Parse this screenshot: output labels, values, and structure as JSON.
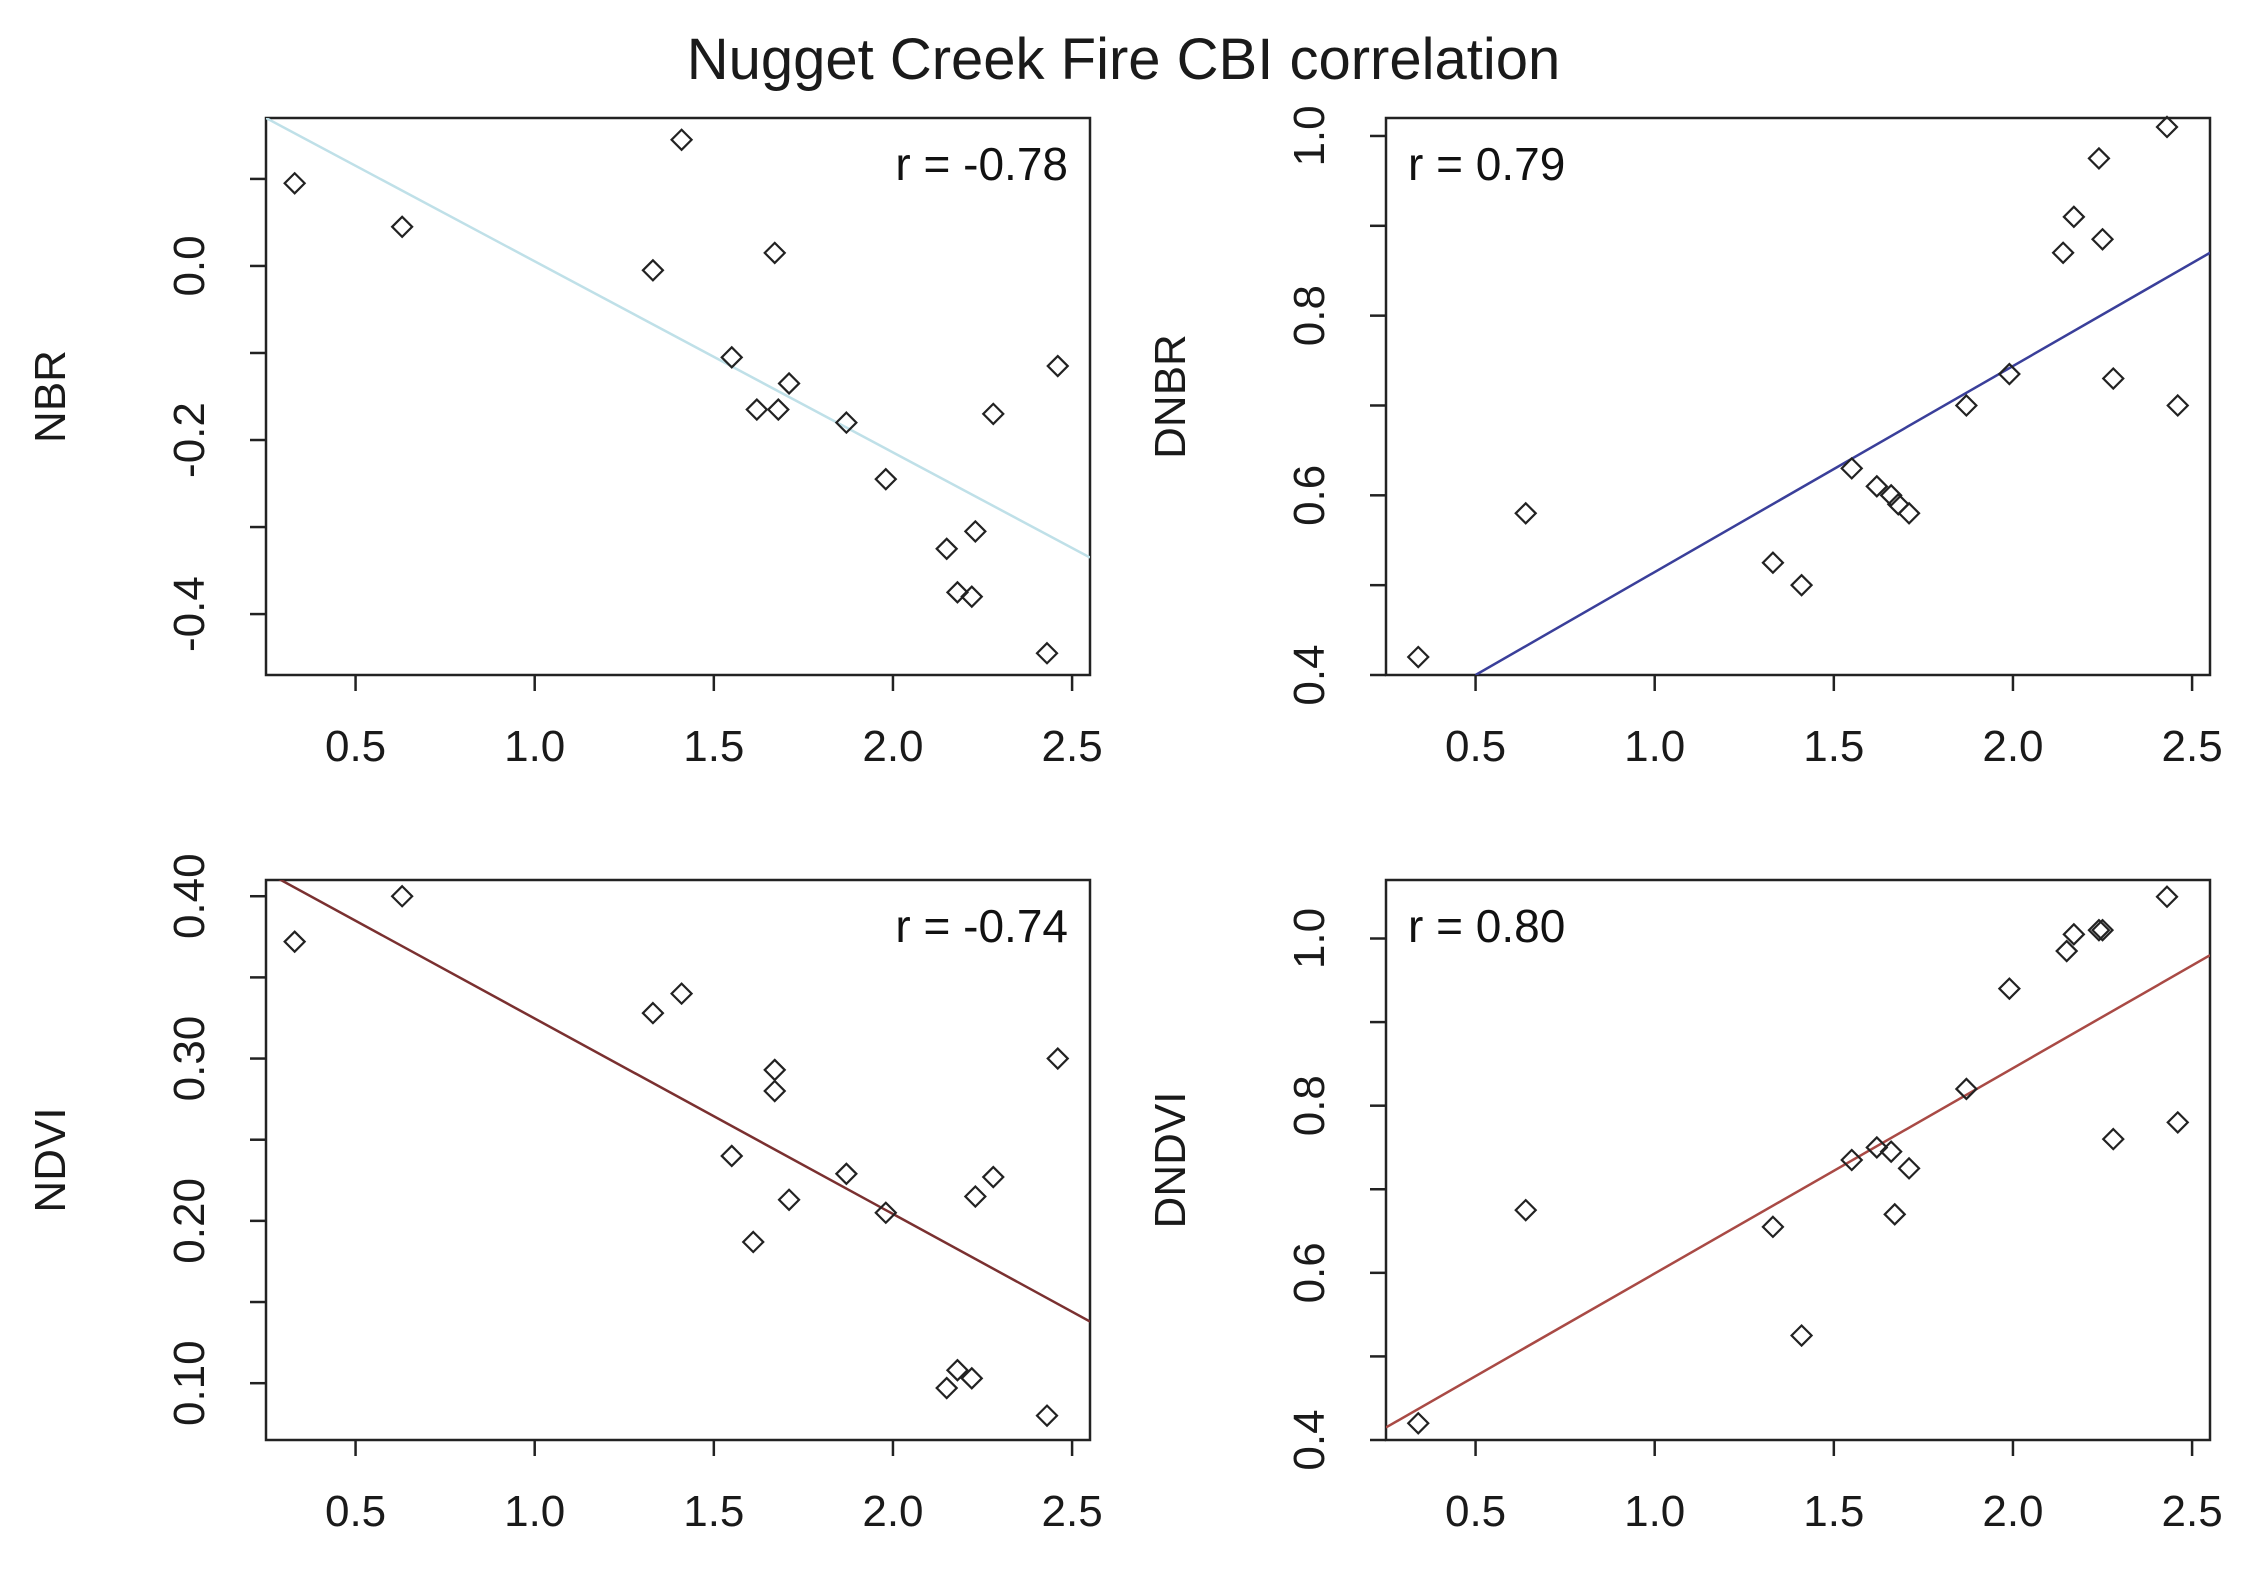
{
  "title": "Nugget Creek Fire CBI correlation",
  "chart_data": [
    {
      "type": "scatter",
      "title": "",
      "xlabel": "",
      "ylabel": "NBR",
      "annotation": "r = -0.78",
      "xlim": [
        0.25,
        2.55
      ],
      "ylim": [
        -0.47,
        0.17
      ],
      "xticks": [
        0.5,
        1.0,
        1.5,
        2.0,
        2.5
      ],
      "xtick_labels": [
        "0.5",
        "1.0",
        "1.5",
        "2.0",
        "2.5"
      ],
      "yticks": [
        -0.4,
        -0.3,
        -0.2,
        -0.1,
        0.0,
        0.1
      ],
      "ytick_labels": [
        "-0.4",
        "",
        "-0.2",
        "",
        "0.0",
        ""
      ],
      "fit_line": {
        "x": [
          0.25,
          2.55
        ],
        "y": [
          0.17,
          -0.335
        ],
        "color": "#bfe0e8"
      },
      "points": [
        {
          "x": 0.33,
          "y": 0.095
        },
        {
          "x": 0.63,
          "y": 0.045
        },
        {
          "x": 1.33,
          "y": -0.005
        },
        {
          "x": 1.41,
          "y": 0.145
        },
        {
          "x": 1.55,
          "y": -0.105
        },
        {
          "x": 1.62,
          "y": -0.165
        },
        {
          "x": 1.67,
          "y": 0.015
        },
        {
          "x": 1.68,
          "y": -0.165
        },
        {
          "x": 1.71,
          "y": -0.135
        },
        {
          "x": 1.87,
          "y": -0.18
        },
        {
          "x": 1.98,
          "y": -0.245
        },
        {
          "x": 2.15,
          "y": -0.325
        },
        {
          "x": 2.18,
          "y": -0.375
        },
        {
          "x": 2.22,
          "y": -0.38
        },
        {
          "x": 2.23,
          "y": -0.305
        },
        {
          "x": 2.28,
          "y": -0.17
        },
        {
          "x": 2.43,
          "y": -0.445
        },
        {
          "x": 2.46,
          "y": -0.115
        }
      ]
    },
    {
      "type": "scatter",
      "title": "",
      "xlabel": "",
      "ylabel": "DNBR",
      "annotation": "r = 0.79",
      "xlim": [
        0.25,
        2.55
      ],
      "ylim": [
        0.4,
        1.02
      ],
      "xticks": [
        0.5,
        1.0,
        1.5,
        2.0,
        2.5
      ],
      "xtick_labels": [
        "0.5",
        "1.0",
        "1.5",
        "2.0",
        "2.5"
      ],
      "yticks": [
        0.4,
        0.5,
        0.6,
        0.7,
        0.8,
        0.9,
        1.0
      ],
      "ytick_labels": [
        "0.4",
        "",
        "0.6",
        "",
        "0.8",
        "",
        "1.0"
      ],
      "fit_line": {
        "x": [
          0.5,
          2.55
        ],
        "y": [
          0.4,
          0.87
        ],
        "color": "#3a3f9a"
      },
      "points": [
        {
          "x": 0.34,
          "y": 0.42
        },
        {
          "x": 0.64,
          "y": 0.58
        },
        {
          "x": 1.33,
          "y": 0.525
        },
        {
          "x": 1.41,
          "y": 0.5
        },
        {
          "x": 1.55,
          "y": 0.63
        },
        {
          "x": 1.62,
          "y": 0.61
        },
        {
          "x": 1.66,
          "y": 0.6
        },
        {
          "x": 1.68,
          "y": 0.59
        },
        {
          "x": 1.71,
          "y": 0.58
        },
        {
          "x": 1.87,
          "y": 0.7
        },
        {
          "x": 1.99,
          "y": 0.735
        },
        {
          "x": 2.14,
          "y": 0.87
        },
        {
          "x": 2.17,
          "y": 0.91
        },
        {
          "x": 2.24,
          "y": 0.975
        },
        {
          "x": 2.25,
          "y": 0.885
        },
        {
          "x": 2.28,
          "y": 0.73
        },
        {
          "x": 2.43,
          "y": 1.01
        },
        {
          "x": 2.46,
          "y": 0.7
        }
      ]
    },
    {
      "type": "scatter",
      "title": "",
      "xlabel": "",
      "ylabel": "NDVI",
      "annotation": "r = -0.74",
      "xlim": [
        0.25,
        2.55
      ],
      "ylim": [
        0.065,
        0.41
      ],
      "xticks": [
        0.5,
        1.0,
        1.5,
        2.0,
        2.5
      ],
      "xtick_labels": [
        "0.5",
        "1.0",
        "1.5",
        "2.0",
        "2.5"
      ],
      "yticks": [
        0.1,
        0.15,
        0.2,
        0.25,
        0.3,
        0.35,
        0.4
      ],
      "ytick_labels": [
        "0.10",
        "",
        "0.20",
        "",
        "0.30",
        "",
        "0.40"
      ],
      "fit_line": {
        "x": [
          0.25,
          2.55
        ],
        "y": [
          0.415,
          0.138
        ],
        "color": "#7a3030"
      },
      "points": [
        {
          "x": 0.33,
          "y": 0.372
        },
        {
          "x": 0.63,
          "y": 0.4
        },
        {
          "x": 1.33,
          "y": 0.328
        },
        {
          "x": 1.41,
          "y": 0.34
        },
        {
          "x": 1.55,
          "y": 0.24
        },
        {
          "x": 1.61,
          "y": 0.187
        },
        {
          "x": 1.67,
          "y": 0.293
        },
        {
          "x": 1.67,
          "y": 0.28
        },
        {
          "x": 1.71,
          "y": 0.213
        },
        {
          "x": 1.87,
          "y": 0.229
        },
        {
          "x": 1.98,
          "y": 0.205
        },
        {
          "x": 2.15,
          "y": 0.097
        },
        {
          "x": 2.18,
          "y": 0.108
        },
        {
          "x": 2.22,
          "y": 0.103
        },
        {
          "x": 2.23,
          "y": 0.215
        },
        {
          "x": 2.28,
          "y": 0.227
        },
        {
          "x": 2.43,
          "y": 0.08
        },
        {
          "x": 2.46,
          "y": 0.3
        }
      ]
    },
    {
      "type": "scatter",
      "title": "",
      "xlabel": "",
      "ylabel": "DNDVI",
      "annotation": "r = 0.80",
      "xlim": [
        0.25,
        2.55
      ],
      "ylim": [
        0.4,
        1.07
      ],
      "xticks": [
        0.5,
        1.0,
        1.5,
        2.0,
        2.5
      ],
      "xtick_labels": [
        "0.5",
        "1.0",
        "1.5",
        "2.0",
        "2.5"
      ],
      "yticks": [
        0.4,
        0.5,
        0.6,
        0.7,
        0.8,
        0.9,
        1.0
      ],
      "ytick_labels": [
        "0.4",
        "",
        "0.6",
        "",
        "0.8",
        "",
        "1.0"
      ],
      "fit_line": {
        "x": [
          0.25,
          2.55
        ],
        "y": [
          0.415,
          0.98
        ],
        "color": "#a94a45"
      },
      "points": [
        {
          "x": 0.34,
          "y": 0.42
        },
        {
          "x": 0.64,
          "y": 0.675
        },
        {
          "x": 1.33,
          "y": 0.655
        },
        {
          "x": 1.41,
          "y": 0.525
        },
        {
          "x": 1.55,
          "y": 0.735
        },
        {
          "x": 1.62,
          "y": 0.75
        },
        {
          "x": 1.66,
          "y": 0.745
        },
        {
          "x": 1.67,
          "y": 0.67
        },
        {
          "x": 1.71,
          "y": 0.725
        },
        {
          "x": 1.87,
          "y": 0.82
        },
        {
          "x": 1.99,
          "y": 0.94
        },
        {
          "x": 2.15,
          "y": 0.985
        },
        {
          "x": 2.17,
          "y": 1.005
        },
        {
          "x": 2.24,
          "y": 1.01
        },
        {
          "x": 2.25,
          "y": 1.01
        },
        {
          "x": 2.28,
          "y": 0.76
        },
        {
          "x": 2.43,
          "y": 1.05
        },
        {
          "x": 2.46,
          "y": 0.78
        }
      ]
    }
  ]
}
